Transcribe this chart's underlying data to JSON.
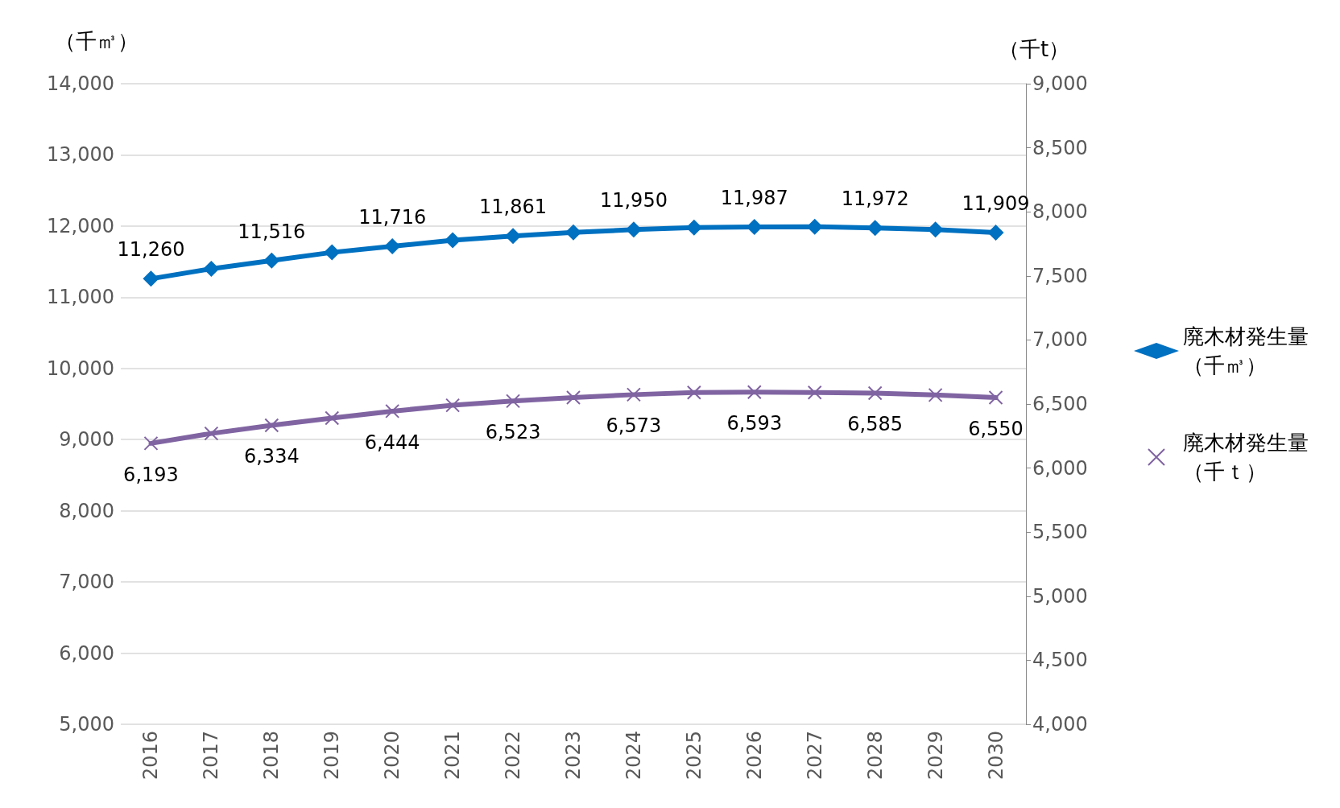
{
  "chart_data": {
    "type": "line",
    "ylabel": "（千㎥）",
    "y2label": "（千t）",
    "categories": [
      "2016",
      "2017",
      "2018",
      "2019",
      "2020",
      "2021",
      "2022",
      "2023",
      "2024",
      "2025",
      "2026",
      "2027",
      "2028",
      "2029",
      "2030"
    ],
    "series": [
      {
        "name": "廃木材発生量（千㎥）",
        "color": "#0070c0",
        "marker": "diamond",
        "values": [
          11260,
          11400,
          11516,
          11630,
          11716,
          11800,
          11861,
          11910,
          11950,
          11980,
          11987,
          11990,
          11972,
          11950,
          11909
        ],
        "value_labels": [
          "11,260",
          null,
          "11,516",
          null,
          "11,716",
          null,
          "11,861",
          null,
          "11,950",
          null,
          "11,987",
          null,
          "11,972",
          null,
          "11,909"
        ]
      },
      {
        "name": "廃木材発生量（千ｔ）",
        "color": "#8064a2",
        "marker": "cross",
        "axis": "y2",
        "values": [
          6193,
          6270,
          6334,
          6390,
          6444,
          6490,
          6523,
          6550,
          6573,
          6590,
          6593,
          6590,
          6585,
          6570,
          6550
        ],
        "value_labels": [
          "6,193",
          null,
          "6,334",
          null,
          "6,444",
          null,
          "6,523",
          null,
          "6,573",
          null,
          "6,593",
          null,
          "6,585",
          null,
          "6,550"
        ]
      }
    ],
    "ylim": [
      5000,
      14000
    ],
    "yticks": [
      {
        "value": 5000,
        "label": "5,000"
      },
      {
        "value": 6000,
        "label": "6,000"
      },
      {
        "value": 7000,
        "label": "7,000"
      },
      {
        "value": 8000,
        "label": "8,000"
      },
      {
        "value": 9000,
        "label": "9,000"
      },
      {
        "value": 10000,
        "label": "10,000"
      },
      {
        "value": 11000,
        "label": "11,000"
      },
      {
        "value": 12000,
        "label": "12,000"
      },
      {
        "value": 13000,
        "label": "13,000"
      },
      {
        "value": 14000,
        "label": "14,000"
      }
    ],
    "y2lim": [
      4000,
      9000
    ],
    "y2ticks": [
      {
        "value": 4000,
        "label": "4,000"
      },
      {
        "value": 4500,
        "label": "4,500"
      },
      {
        "value": 5000,
        "label": "5,000"
      },
      {
        "value": 5500,
        "label": "5,500"
      },
      {
        "value": 6000,
        "label": "6,000"
      },
      {
        "value": 6500,
        "label": "6,500"
      },
      {
        "value": 7000,
        "label": "7,000"
      },
      {
        "value": 7500,
        "label": "7,500"
      },
      {
        "value": 8000,
        "label": "8,000"
      },
      {
        "value": 8500,
        "label": "8,500"
      },
      {
        "value": 9000,
        "label": "9,000"
      }
    ],
    "grid": "y",
    "legend": "right",
    "line_style": "solid"
  }
}
